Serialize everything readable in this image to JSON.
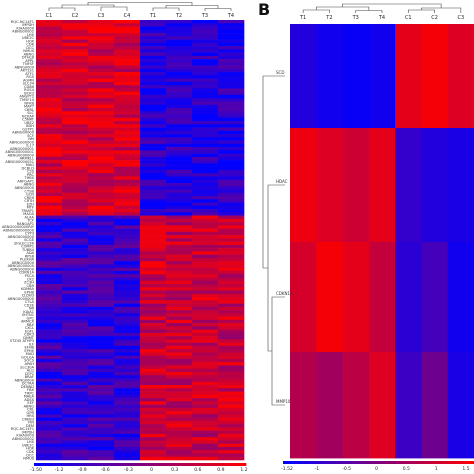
{
  "panel_b_label": "B",
  "chart_data": [
    {
      "type": "heatmap",
      "title": "",
      "columns": [
        "C1",
        "C2",
        "C3",
        "C4",
        "T1",
        "T2",
        "T3",
        "T4"
      ],
      "row_count": 135,
      "row_labels_sample": [
        "RQC-NC14F1",
        "IMPDH",
        "KIAA0000",
        "ABNG00002",
        "LHX",
        "UBE2C",
        "HOX",
        "CDK",
        "DCC",
        "NMUS",
        "ABNG",
        "DTHLB",
        "APPL",
        "TNFSF",
        "ABNG0000",
        "AKT1S1",
        "ATF1",
        "RGS",
        "AGMN",
        "SLC34",
        "CD8B",
        "RGS4",
        "BCR3",
        "ANGPT2",
        "TMSF14",
        "NFKB",
        "MAP7",
        "CBRL",
        "SLC",
        "NCKAP",
        "C5NRT",
        "UBE2",
        "BDH",
        "GSTP1",
        "ABNG00000",
        "SCF",
        "NM",
        "ABNGG00000",
        "IL17",
        "ABNG000001",
        "ABNG00000001",
        "ABNG0000000",
        "ARMKLL",
        "ABNG00000051",
        "MAG",
        "DCBLD",
        "CSS",
        "PRC",
        "THBS",
        "ARFGAP1",
        "ABNG",
        "ABNG0000",
        "CTSB",
        "GCN",
        "CREB",
        "CRTH",
        "EZH",
        "MTF",
        "TRIAP1",
        "MAOA",
        "ALAA",
        "TCF",
        "RANGAP1",
        "ABNG0000000RIY",
        "ABNG000000000",
        "CYP3",
        "ABNG0000000",
        "SCGE",
        "SIGLEC12R",
        "COMP1",
        "TUBB4",
        "ADA",
        "RPS6",
        "PLEKHA",
        "ABNGG0000",
        "ABNG0000000",
        "ABNG000000",
        "CDKN1A",
        "PSCA",
        "CK2",
        "ZC3H",
        "CBR",
        "KDM6A",
        "EPHB",
        "CLDN3",
        "ABNG0000000",
        "CTLA",
        "CD3E",
        "NR",
        "KIAA1",
        "SHTN1",
        "GPC",
        "ARMCX",
        "RBX",
        "CXCL",
        "EGFL",
        "CDK3",
        "DNMT",
        "STZ45 ATHP3",
        "ILF",
        "EFHB",
        "EPHX",
        "MAD",
        "GOLGA",
        "SOCS",
        "APAH",
        "SLC30A",
        "ALG",
        "CEP1",
        "BRAF",
        "ABNG0000",
        "DCTAA",
        "DENND",
        "FBX",
        "TRPC",
        "MAEA",
        "ADSS",
        "EEF",
        "ABNG",
        "CRL",
        "GPR",
        "HRS",
        "CREB3",
        "FIN",
        "DEM"
      ],
      "colorbar_ticks": [
        "-1.50",
        "-1.2",
        "-0.9",
        "-0.6",
        "-0.3",
        "0",
        "0.3",
        "0.6",
        "0.9",
        "1.2"
      ],
      "colorscale": [
        "#0000ff",
        "#7f007f",
        "#ff0000"
      ]
    },
    {
      "type": "heatmap",
      "title": "",
      "columns": [
        "T1",
        "T2",
        "T3",
        "T4",
        "C1",
        "C2",
        "C3"
      ],
      "rows": [
        "SCD",
        "HDAC",
        "CDKN1A",
        "MMP10"
      ],
      "values": [
        [
          -1.1,
          -1.3,
          -1.4,
          -1.3,
          1.2,
          1.4,
          1.1
        ],
        [
          1.3,
          1.1,
          0.9,
          1.2,
          -0.9,
          -1.1,
          -1.2
        ],
        [
          1.0,
          1.4,
          1.2,
          0.8,
          -1.0,
          -0.7,
          -1.3
        ],
        [
          0.6,
          0.4,
          0.7,
          1.1,
          -0.8,
          -0.2,
          -1.2
        ]
      ],
      "colorbar_ticks": [
        "-1.52",
        "-1",
        "-0.5",
        "0",
        "0.5",
        "1",
        "1.5"
      ],
      "colorscale": [
        "#0000ff",
        "#7f007f",
        "#ff0000"
      ]
    }
  ]
}
